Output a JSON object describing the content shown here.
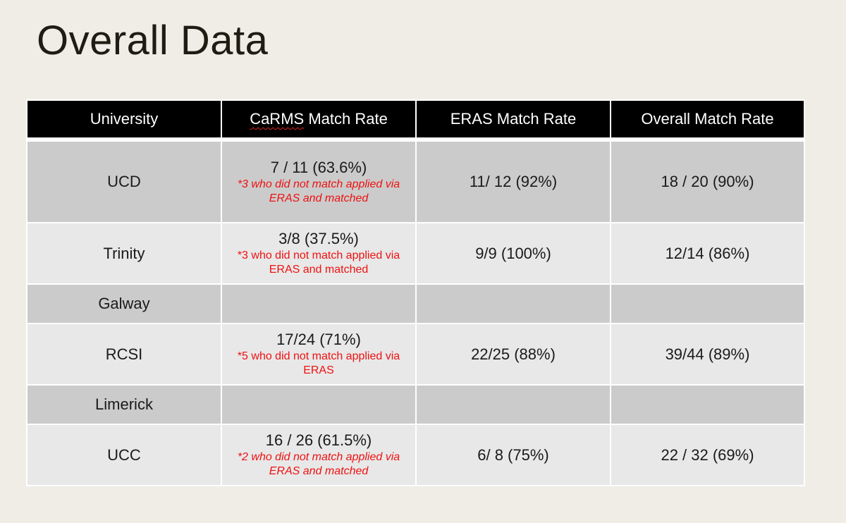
{
  "title": "Overall Data",
  "table": {
    "headers": {
      "university": "University",
      "carms_word": "CaRMS",
      "carms_rest": " Match Rate",
      "eras": "ERAS Match Rate",
      "overall": "Overall Match Rate"
    },
    "rows": [
      {
        "university": "UCD",
        "carms": "7 / 11 (63.6%)",
        "carms_note": "*3 who did not match applied via ERAS and matched",
        "eras": "11/ 12 (92%)",
        "overall": "18 / 20 (90%)"
      },
      {
        "university": "Trinity",
        "carms": "3/8 (37.5%)",
        "carms_note": "*3 who did not match applied via ERAS and matched",
        "eras": "9/9 (100%)",
        "overall": "12/14 (86%)"
      },
      {
        "university": "Galway",
        "carms": "",
        "carms_note": "",
        "eras": "",
        "overall": ""
      },
      {
        "university": "RCSI",
        "carms": "17/24 (71%)",
        "carms_note": "*5 who did not match applied via ERAS",
        "eras": "22/25 (88%)",
        "overall": "39/44 (89%)"
      },
      {
        "university": "Limerick",
        "carms": "",
        "carms_note": "",
        "eras": "",
        "overall": ""
      },
      {
        "university": "UCC",
        "carms": "16 / 26 (61.5%)",
        "carms_note": "*2 who did not match applied via ERAS and matched",
        "eras": "6/ 8 (75%)",
        "overall": "22 / 32 (69%)"
      }
    ]
  }
}
